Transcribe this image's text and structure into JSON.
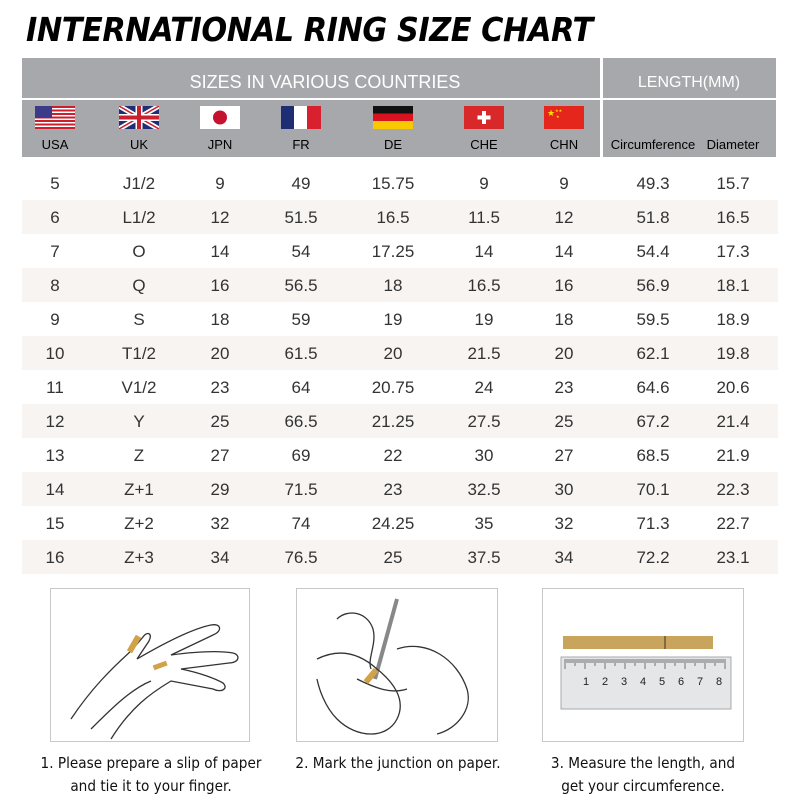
{
  "title": "INTERNATIONAL RING SIZE CHART",
  "header": {
    "sizes_label": "SIZES IN VARIOUS COUNTRIES",
    "length_label": "LENGTH(MM)",
    "columns": [
      {
        "label": "USA",
        "flag": "usa-flag"
      },
      {
        "label": "UK",
        "flag": "uk-flag"
      },
      {
        "label": "JPN",
        "flag": "japan-flag"
      },
      {
        "label": "FR",
        "flag": "france-flag"
      },
      {
        "label": "DE",
        "flag": "germany-flag"
      },
      {
        "label": "CHE",
        "flag": "switzerland-flag"
      },
      {
        "label": "CHN",
        "flag": "china-flag"
      },
      {
        "label": "Circumference"
      },
      {
        "label": "Diameter"
      }
    ]
  },
  "rows": [
    [
      "5",
      "J1/2",
      "9",
      "49",
      "15.75",
      "9",
      "9",
      "49.3",
      "15.7"
    ],
    [
      "6",
      "L1/2",
      "12",
      "51.5",
      "16.5",
      "11.5",
      "12",
      "51.8",
      "16.5"
    ],
    [
      "7",
      "O",
      "14",
      "54",
      "17.25",
      "14",
      "14",
      "54.4",
      "17.3"
    ],
    [
      "8",
      "Q",
      "16",
      "56.5",
      "18",
      "16.5",
      "16",
      "56.9",
      "18.1"
    ],
    [
      "9",
      "S",
      "18",
      "59",
      "19",
      "19",
      "18",
      "59.5",
      "18.9"
    ],
    [
      "10",
      "T1/2",
      "20",
      "61.5",
      "20",
      "21.5",
      "20",
      "62.1",
      "19.8"
    ],
    [
      "11",
      "V1/2",
      "23",
      "64",
      "20.75",
      "24",
      "23",
      "64.6",
      "20.6"
    ],
    [
      "12",
      "Y",
      "25",
      "66.5",
      "21.25",
      "27.5",
      "25",
      "67.2",
      "21.4"
    ],
    [
      "13",
      "Z",
      "27",
      "69",
      "22",
      "30",
      "27",
      "68.5",
      "21.9"
    ],
    [
      "14",
      "Z+1",
      "29",
      "71.5",
      "23",
      "32.5",
      "30",
      "70.1",
      "22.3"
    ],
    [
      "15",
      "Z+2",
      "32",
      "74",
      "24.25",
      "35",
      "32",
      "71.3",
      "22.7"
    ],
    [
      "16",
      "Z+3",
      "34",
      "76.5",
      "25",
      "37.5",
      "34",
      "72.2",
      "23.1"
    ]
  ],
  "steps": [
    {
      "line1": "1. Please prepare a slip of paper",
      "line2": "and tie it to your finger."
    },
    {
      "line1": "2. Mark the junction on paper.",
      "line2": ""
    },
    {
      "line1": "3. Measure the length, and",
      "line2": "get your circumference."
    }
  ],
  "ruler": {
    "numbers": [
      "1",
      "2",
      "3",
      "4",
      "5",
      "6",
      "7",
      "8"
    ]
  },
  "colors": {
    "header": "#a7a8ab",
    "row_shade": "#f8f4f2",
    "paper": "#c9a45c"
  }
}
